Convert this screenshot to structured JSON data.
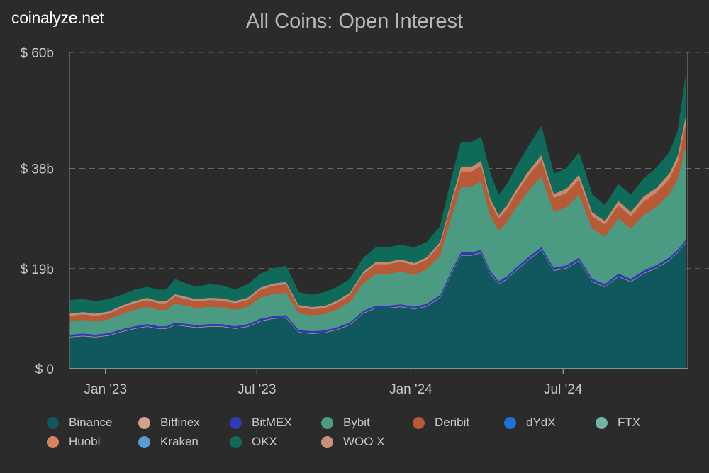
{
  "header": {
    "brand": "coinalyze.net",
    "title": "All Coins: Open Interest"
  },
  "chart_data": {
    "type": "area",
    "stacked": true,
    "title": "All Coins: Open Interest",
    "ylim": [
      0,
      60
    ],
    "yticks": [
      {
        "value": 0,
        "label": "$ 0"
      },
      {
        "value": 19,
        "label": "$ 19b"
      },
      {
        "value": 38,
        "label": "$ 38b"
      },
      {
        "value": 60,
        "label": "$ 60b"
      }
    ],
    "xlim": [
      "2022-11-19",
      "2024-11-27"
    ],
    "xticks": [
      {
        "date": "2023-01-01",
        "label": "Jan '23"
      },
      {
        "date": "2023-07-01",
        "label": "Jul '23"
      },
      {
        "date": "2024-01-01",
        "label": "Jan '24"
      },
      {
        "date": "2024-07-01",
        "label": "Jul '24"
      }
    ],
    "dates": [
      "2022-11-20",
      "2022-12-05",
      "2022-12-20",
      "2023-01-05",
      "2023-01-20",
      "2023-02-05",
      "2023-02-20",
      "2023-03-05",
      "2023-03-15",
      "2023-03-25",
      "2023-04-10",
      "2023-04-20",
      "2023-05-05",
      "2023-05-20",
      "2023-06-05",
      "2023-06-20",
      "2023-07-05",
      "2023-07-20",
      "2023-08-05",
      "2023-08-20",
      "2023-09-05",
      "2023-09-20",
      "2023-10-05",
      "2023-10-20",
      "2023-11-05",
      "2023-11-20",
      "2023-12-05",
      "2023-12-20",
      "2024-01-05",
      "2024-01-20",
      "2024-02-05",
      "2024-02-20",
      "2024-03-01",
      "2024-03-14",
      "2024-03-25",
      "2024-04-05",
      "2024-04-15",
      "2024-04-25",
      "2024-05-05",
      "2024-05-20",
      "2024-06-05",
      "2024-06-20",
      "2024-07-05",
      "2024-07-20",
      "2024-08-05",
      "2024-08-20",
      "2024-09-05",
      "2024-09-20",
      "2024-10-05",
      "2024-10-20",
      "2024-11-05",
      "2024-11-15",
      "2024-11-25"
    ],
    "totals": [
      13,
      13.2,
      12.8,
      13.2,
      14,
      15,
      15.5,
      15,
      15,
      17,
      16,
      15.5,
      16,
      15.8,
      15,
      16,
      18,
      19,
      19.5,
      14.5,
      14,
      14.5,
      15.5,
      17,
      21,
      23,
      23,
      23.5,
      23,
      24,
      27,
      37,
      43,
      43,
      44,
      37,
      33,
      35,
      38,
      42,
      46,
      37,
      38,
      41,
      33,
      31,
      35,
      33,
      36,
      38,
      41,
      45,
      56
    ],
    "series": [
      {
        "name": "Binance",
        "color": "#10585e",
        "values": [
          6,
          6.2,
          6,
          6.3,
          7,
          7.6,
          8,
          7.6,
          7.6,
          8.3,
          8,
          7.8,
          8,
          8,
          7.6,
          8,
          9,
          9.5,
          9.7,
          7,
          6.8,
          7,
          7.6,
          8.5,
          10.5,
          11.5,
          11.5,
          11.7,
          11.3,
          11.8,
          13.5,
          18.5,
          21.5,
          21.5,
          22,
          18,
          16,
          17,
          18.5,
          20.5,
          22.5,
          18.5,
          19,
          20.5,
          16.5,
          15.5,
          17.5,
          16.5,
          18,
          19,
          20.5,
          22,
          24
        ]
      },
      {
        "name": "Bitfinex",
        "color": "#d4a190",
        "values": [
          0.1,
          0.1,
          0.1,
          0.1,
          0.1,
          0.1,
          0.1,
          0.1,
          0.1,
          0.1,
          0.1,
          0.1,
          0.1,
          0.1,
          0.1,
          0.1,
          0.1,
          0.1,
          0.1,
          0.1,
          0.1,
          0.1,
          0.1,
          0.1,
          0.1,
          0.1,
          0.1,
          0.1,
          0.1,
          0.1,
          0.1,
          0.1,
          0.1,
          0.1,
          0.1,
          0.1,
          0.1,
          0.1,
          0.1,
          0.1,
          0.1,
          0.1,
          0.1,
          0.1,
          0.1,
          0.1,
          0.1,
          0.1,
          0.1,
          0.1,
          0.1,
          0.1,
          0.1
        ]
      },
      {
        "name": "BitMEX",
        "color": "#2f3bb3",
        "values": [
          0.4,
          0.4,
          0.4,
          0.4,
          0.4,
          0.4,
          0.4,
          0.4,
          0.4,
          0.4,
          0.4,
          0.4,
          0.4,
          0.4,
          0.4,
          0.4,
          0.4,
          0.4,
          0.4,
          0.4,
          0.4,
          0.4,
          0.4,
          0.4,
          0.4,
          0.4,
          0.4,
          0.4,
          0.4,
          0.4,
          0.4,
          0.5,
          0.5,
          0.5,
          0.5,
          0.5,
          0.5,
          0.5,
          0.5,
          0.5,
          0.5,
          0.5,
          0.5,
          0.5,
          0.5,
          0.5,
          0.5,
          0.5,
          0.5,
          0.5,
          0.5,
          0.5,
          0.5
        ]
      },
      {
        "name": "Bybit",
        "color": "#4b9a82",
        "values": [
          2.5,
          2.6,
          2.5,
          2.6,
          2.9,
          3.1,
          3.3,
          3.1,
          3.1,
          3.6,
          3.4,
          3.2,
          3.3,
          3.2,
          3.1,
          3.3,
          4,
          4.2,
          4.3,
          3.2,
          3.1,
          3.2,
          3.5,
          4,
          5.3,
          6,
          6,
          6.2,
          6,
          6.5,
          7.5,
          10.5,
          12.5,
          12.5,
          13,
          10.5,
          9.5,
          10.3,
          11.3,
          12.5,
          13.5,
          10.5,
          11,
          12,
          9.5,
          9,
          10.5,
          9.5,
          10.5,
          11,
          12,
          13.5,
          18
        ]
      },
      {
        "name": "Deribit",
        "color": "#b85a35",
        "values": [
          1,
          1,
          1,
          1,
          1.1,
          1.2,
          1.2,
          1.2,
          1.2,
          1.3,
          1.2,
          1.2,
          1.2,
          1.2,
          1.2,
          1.2,
          1.4,
          1.5,
          1.5,
          1.1,
          1.1,
          1.1,
          1.2,
          1.3,
          1.6,
          1.8,
          1.8,
          1.8,
          1.8,
          1.8,
          2,
          2.5,
          2.8,
          2.8,
          2.9,
          2.5,
          2.3,
          2.4,
          2.6,
          2.8,
          3,
          2.6,
          2.6,
          2.8,
          2.3,
          2.2,
          2.4,
          2.3,
          2.5,
          2.6,
          2.8,
          3.2,
          4.2
        ]
      },
      {
        "name": "dYdX",
        "color": "#1e73d4",
        "values": [
          0.05,
          0.05,
          0.05,
          0.05,
          0.05,
          0.05,
          0.05,
          0.05,
          0.05,
          0.05,
          0.05,
          0.05,
          0.05,
          0.05,
          0.05,
          0.05,
          0.05,
          0.05,
          0.05,
          0.05,
          0.05,
          0.05,
          0.05,
          0.05,
          0.05,
          0.05,
          0.05,
          0.05,
          0.05,
          0.05,
          0.05,
          0.05,
          0.05,
          0.05,
          0.05,
          0.05,
          0.05,
          0.05,
          0.05,
          0.05,
          0.05,
          0.05,
          0.05,
          0.05,
          0.05,
          0.05,
          0.05,
          0.05,
          0.05,
          0.05,
          0.05,
          0.05,
          0.05
        ]
      },
      {
        "name": "FTX",
        "color": "#6fb5a8",
        "values": [
          0,
          0,
          0,
          0,
          0,
          0,
          0,
          0,
          0,
          0,
          0,
          0,
          0,
          0,
          0,
          0,
          0,
          0,
          0,
          0,
          0,
          0,
          0,
          0,
          0,
          0,
          0,
          0,
          0,
          0,
          0,
          0,
          0,
          0,
          0,
          0,
          0,
          0,
          0,
          0,
          0,
          0,
          0,
          0,
          0,
          0,
          0,
          0,
          0,
          0,
          0,
          0,
          0
        ]
      },
      {
        "name": "Huobi",
        "color": "#d9835f",
        "values": [
          0.4,
          0.4,
          0.4,
          0.4,
          0.4,
          0.4,
          0.4,
          0.4,
          0.4,
          0.4,
          0.4,
          0.4,
          0.4,
          0.4,
          0.4,
          0.4,
          0.4,
          0.4,
          0.4,
          0.4,
          0.4,
          0.4,
          0.4,
          0.4,
          0.4,
          0.4,
          0.4,
          0.4,
          0.4,
          0.4,
          0.5,
          0.7,
          0.9,
          0.9,
          0.9,
          0.7,
          0.6,
          0.7,
          0.7,
          0.8,
          0.9,
          0.7,
          0.8,
          0.9,
          0.7,
          0.7,
          0.8,
          0.8,
          0.9,
          0.9,
          1,
          1.1,
          1.5
        ]
      },
      {
        "name": "Kraken",
        "color": "#5a9ad6",
        "values": [
          0.05,
          0.05,
          0.05,
          0.05,
          0.05,
          0.05,
          0.05,
          0.05,
          0.05,
          0.05,
          0.05,
          0.05,
          0.05,
          0.05,
          0.05,
          0.05,
          0.05,
          0.05,
          0.05,
          0.05,
          0.05,
          0.05,
          0.05,
          0.05,
          0.05,
          0.05,
          0.05,
          0.05,
          0.05,
          0.05,
          0.05,
          0.05,
          0.05,
          0.05,
          0.05,
          0.05,
          0.05,
          0.05,
          0.05,
          0.05,
          0.05,
          0.05,
          0.05,
          0.05,
          0.05,
          0.05,
          0.05,
          0.05,
          0.05,
          0.05,
          0.05,
          0.05,
          0.05
        ]
      },
      {
        "name": "OKX",
        "color": "#0f6b59",
        "values": [
          2.5,
          2.4,
          2.3,
          2.3,
          2,
          2.1,
          2,
          2.1,
          2.1,
          2.8,
          2.4,
          2.3,
          2.5,
          2.4,
          2.1,
          2.5,
          2.6,
          2.8,
          3,
          2.4,
          2.3,
          2.6,
          2.6,
          2.6,
          2.6,
          2.7,
          2.7,
          2.7,
          2.9,
          2.8,
          2.9,
          4.1,
          4.6,
          4.6,
          4.5,
          4.6,
          3.8,
          3.9,
          4.2,
          4.6,
          5.4,
          3.8,
          3.8,
          4.1,
          3.3,
          2.9,
          3.1,
          3.2,
          3.3,
          3.7,
          3.9,
          4.5,
          7.6
        ]
      },
      {
        "name": "WOO X",
        "color": "#c98f7e",
        "values": [
          0,
          0,
          0,
          0,
          0,
          0,
          0,
          0,
          0,
          0,
          0,
          0,
          0,
          0,
          0,
          0,
          0,
          0,
          0,
          0,
          0,
          0,
          0,
          0,
          0,
          0,
          0,
          0,
          0,
          0,
          0,
          0,
          0,
          0,
          0,
          0,
          0,
          0,
          0,
          0,
          0,
          0,
          0,
          0,
          0,
          0,
          0,
          0,
          0,
          0,
          0,
          0,
          0
        ]
      }
    ],
    "legend_position": "bottom",
    "grid": "horizontal-dashed"
  }
}
